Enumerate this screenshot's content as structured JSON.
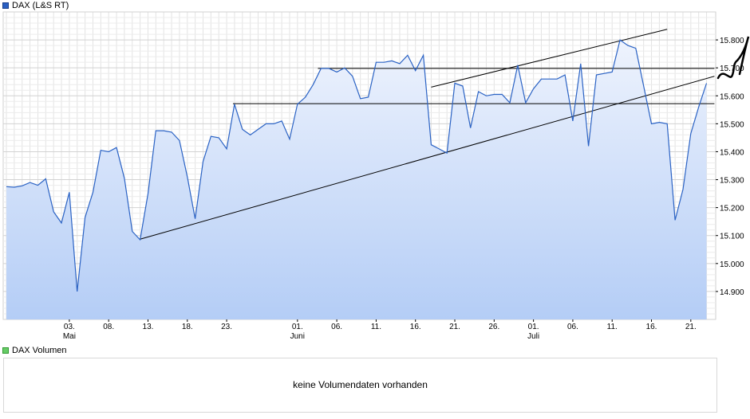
{
  "price_legend": "DAX (L&S RT)",
  "volume_legend": "DAX Volumen",
  "volume_message": "keine Volumendaten vorhanden",
  "colors": {
    "line": "#2a62c4",
    "area_top": "#eef3fd",
    "area_bottom": "#b4cdf6",
    "grid": "#dcdcdc",
    "trend": "#000000"
  },
  "chart_data": {
    "type": "area",
    "title": "DAX (L&S RT)",
    "ylim": [
      14800,
      15900
    ],
    "y_ticks": [
      14900,
      15000,
      15100,
      15200,
      15300,
      15400,
      15500,
      15600,
      15700,
      15800
    ],
    "y_tick_labels": [
      "14.900",
      "15.000",
      "15.100",
      "15.200",
      "15.300",
      "15.400",
      "15.500",
      "15.600",
      "15.700",
      "15.800"
    ],
    "x_tick_labels": [
      {
        "i": 8,
        "label": "03.",
        "sub": "Mai"
      },
      {
        "i": 13,
        "label": "08.",
        "sub": ""
      },
      {
        "i": 18,
        "label": "13.",
        "sub": ""
      },
      {
        "i": 23,
        "label": "18.",
        "sub": ""
      },
      {
        "i": 28,
        "label": "23.",
        "sub": ""
      },
      {
        "i": 37,
        "label": "01.",
        "sub": "Juni"
      },
      {
        "i": 42,
        "label": "06.",
        "sub": ""
      },
      {
        "i": 47,
        "label": "11.",
        "sub": ""
      },
      {
        "i": 52,
        "label": "16.",
        "sub": ""
      },
      {
        "i": 57,
        "label": "21.",
        "sub": ""
      },
      {
        "i": 62,
        "label": "26.",
        "sub": ""
      },
      {
        "i": 67,
        "label": "01.",
        "sub": "Juli"
      },
      {
        "i": 72,
        "label": "06.",
        "sub": ""
      },
      {
        "i": 77,
        "label": "11.",
        "sub": ""
      },
      {
        "i": 82,
        "label": "16.",
        "sub": ""
      },
      {
        "i": 87,
        "label": "21.",
        "sub": ""
      }
    ],
    "n_slots": 90,
    "values": [
      15275,
      15273,
      15278,
      15290,
      15280,
      15303,
      15185,
      15145,
      15255,
      14900,
      15165,
      15255,
      15405,
      15400,
      15415,
      15305,
      15115,
      15085,
      15250,
      15475,
      15475,
      15470,
      15440,
      15310,
      15160,
      15365,
      15455,
      15450,
      15410,
      15570,
      15480,
      15460,
      15480,
      15500,
      15500,
      15510,
      15445,
      15570,
      15595,
      15640,
      15698,
      15698,
      15685,
      15700,
      15670,
      15590,
      15595,
      15720,
      15720,
      15725,
      15715,
      15745,
      15690,
      15745,
      15425,
      15410,
      15395,
      15645,
      15635,
      15485,
      15615,
      15600,
      15605,
      15605,
      15575,
      15710,
      15575,
      15625,
      15660,
      15660,
      15660,
      15675,
      15510,
      15715,
      15420,
      15675,
      15680,
      15685,
      15800,
      15780,
      15770,
      15635,
      15500,
      15505,
      15500,
      15155,
      15265,
      15465,
      15560,
      15645
    ],
    "trend_lines": [
      {
        "x1": 17,
        "y1": 15087,
        "x2": 90,
        "y2": 15670
      },
      {
        "x1": 54,
        "y1": 15631,
        "x2": 84,
        "y2": 15838
      },
      {
        "x1": 28.8,
        "y1": 15572,
        "x2": 90,
        "y2": 15572
      },
      {
        "x1": 39.6,
        "y1": 15698,
        "x2": 90,
        "y2": 15698
      }
    ]
  }
}
